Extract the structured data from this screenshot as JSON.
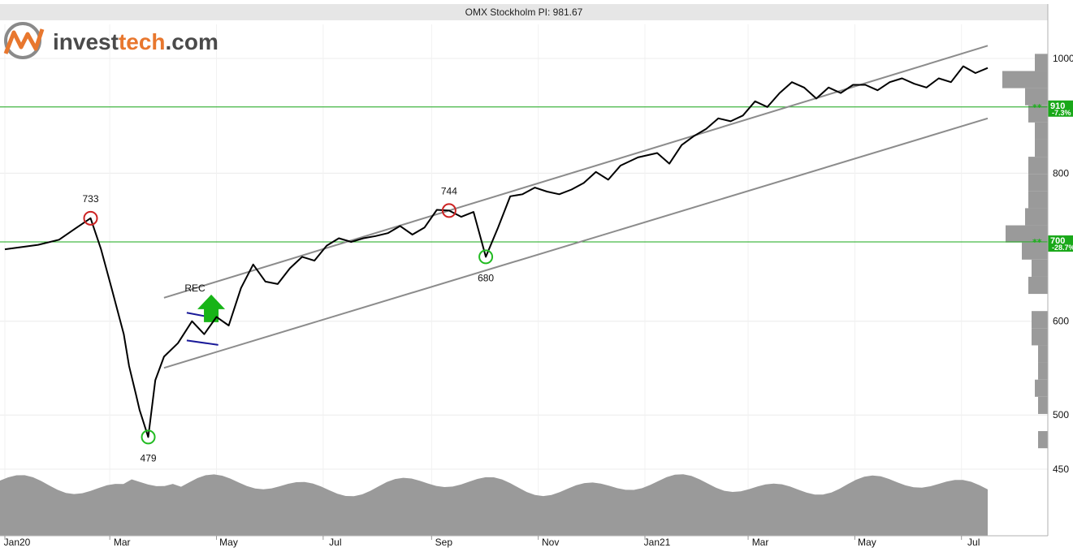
{
  "chart_data": {
    "type": "line",
    "title": "OMX Stockholm PI: 981.67",
    "y_scale": "log",
    "ylim": [
      420,
      1060
    ],
    "y_ticks": [
      450,
      500,
      600,
      700,
      800,
      910,
      1000
    ],
    "y_tick_labels": [
      "450",
      "500",
      "600",
      "",
      "800",
      "",
      "1000"
    ],
    "x_tick_labels": [
      "Jan20",
      "Mar",
      "May",
      "Jul",
      "Sep",
      "Nov",
      "Jan21",
      "Mar",
      "May",
      "Jul"
    ],
    "series": [
      {
        "name": "",
        "x": [
          "2020-01-01",
          "2020-01-20",
          "2020-02-01",
          "2020-02-10",
          "2020-02-19",
          "2020-02-25",
          "2020-03-02",
          "2020-03-09",
          "2020-03-12",
          "2020-03-16",
          "2020-03-18",
          "2020-03-23",
          "2020-03-27",
          "2020-04-01",
          "2020-04-09",
          "2020-04-17",
          "2020-04-24",
          "2020-05-01",
          "2020-05-08",
          "2020-05-15",
          "2020-05-22",
          "2020-05-29",
          "2020-06-05",
          "2020-06-12",
          "2020-06-19",
          "2020-06-26",
          "2020-07-03",
          "2020-07-10",
          "2020-07-17",
          "2020-07-24",
          "2020-07-31",
          "2020-08-07",
          "2020-08-14",
          "2020-08-21",
          "2020-08-28",
          "2020-09-04",
          "2020-09-11",
          "2020-09-18",
          "2020-09-25",
          "2020-10-02",
          "2020-10-09",
          "2020-10-16",
          "2020-10-23",
          "2020-10-30",
          "2020-11-06",
          "2020-11-13",
          "2020-11-20",
          "2020-11-27",
          "2020-12-04",
          "2020-12-11",
          "2020-12-18",
          "2020-12-28",
          "2021-01-08",
          "2021-01-15",
          "2021-01-22",
          "2021-01-29",
          "2021-02-05",
          "2021-02-12",
          "2021-02-19",
          "2021-02-26",
          "2021-03-05",
          "2021-03-12",
          "2021-03-19",
          "2021-03-26",
          "2021-04-02",
          "2021-04-09",
          "2021-04-16",
          "2021-04-23",
          "2021-04-30",
          "2021-05-07",
          "2021-05-14",
          "2021-05-21",
          "2021-05-28",
          "2021-06-04",
          "2021-06-11",
          "2021-06-18",
          "2021-06-25",
          "2021-07-02",
          "2021-07-09",
          "2021-07-16"
        ],
        "values": [
          690,
          696,
          703,
          718,
          733,
          690,
          640,
          585,
          550,
          520,
          505,
          479,
          535,
          560,
          575,
          600,
          585,
          605,
          595,
          640,
          670,
          648,
          645,
          665,
          680,
          675,
          695,
          705,
          700,
          705,
          708,
          712,
          722,
          710,
          720,
          745,
          744,
          735,
          742,
          680,
          720,
          765,
          768,
          778,
          772,
          768,
          775,
          785,
          802,
          790,
          812,
          825,
          832,
          815,
          845,
          860,
          872,
          890,
          885,
          895,
          920,
          910,
          935,
          955,
          945,
          925,
          945,
          935,
          950,
          950,
          940,
          955,
          962,
          952,
          945,
          962,
          955,
          985,
          972,
          981.67
        ]
      }
    ],
    "channel": [
      {
        "from": [
          "2020-04-01",
          628
        ],
        "to": [
          "2021-07-16",
          1025
        ]
      },
      {
        "from": [
          "2020-04-01",
          548
        ],
        "to": [
          "2021-07-16",
          890
        ]
      }
    ],
    "levels": [
      {
        "value": 910,
        "label": "910",
        "pct": "-7.3%"
      },
      {
        "value": 700,
        "label": "700",
        "pct": "-28.7%"
      }
    ],
    "annotations": [
      {
        "x": "2020-02-19",
        "y": 733,
        "text": "733",
        "kind": "top"
      },
      {
        "x": "2020-03-23",
        "y": 479,
        "text": "479",
        "kind": "bottom"
      },
      {
        "x": "2020-09-11",
        "y": 744,
        "text": "744",
        "kind": "top"
      },
      {
        "x": "2020-10-02",
        "y": 680,
        "text": "680",
        "kind": "bottom"
      }
    ],
    "signal": {
      "text": "REC",
      "x": "2020-04-28",
      "y": 620
    },
    "colors": {
      "price": "#000000",
      "channel": "#8c8c8c",
      "level": "#19a819",
      "top_marker": "#cc2222",
      "bottom_marker": "#22bb22",
      "volume": "#9a9a9a",
      "wedge": "#1a1a99",
      "arrow": "#17b417"
    }
  },
  "logo": {
    "part1": "invest",
    "part2": "tech",
    "part3": ".com"
  }
}
